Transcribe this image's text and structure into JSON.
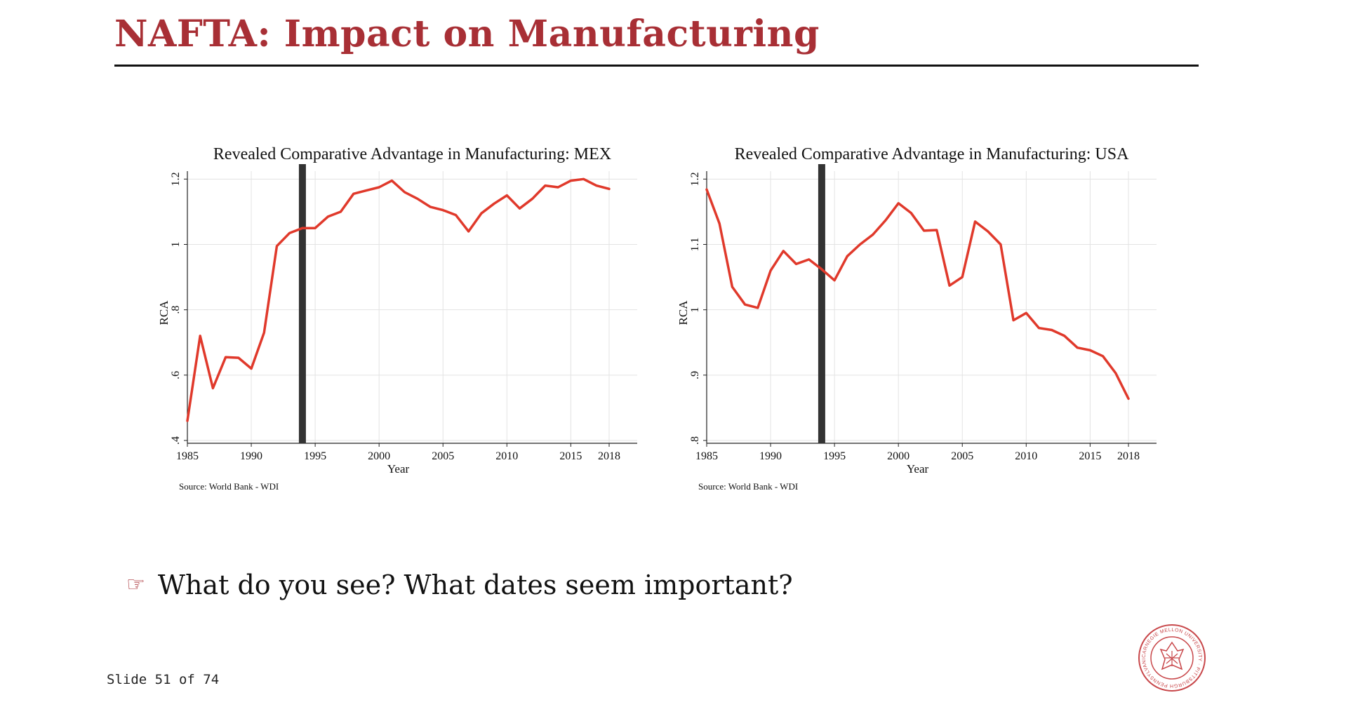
{
  "slide": {
    "title": "NAFTA: Impact on Manufacturing",
    "bullet_icon": "pointing-hand-icon",
    "bullet_text": "What do you see? What dates seem important?",
    "slide_number": "Slide 51 of 74",
    "logo": {
      "icon": "cmu-seal-logo",
      "text": "CARNEGIE MELLON UNIVERSITY · PITTSBURGH PENNSYLVANIA 1900"
    },
    "accent_color": "#a82f35"
  },
  "chart_data": [
    {
      "type": "line",
      "title": "Revealed Comparative Advantage in Manufacturing: MEX",
      "xlabel": "Year",
      "ylabel": "RCA",
      "source": "Source: World Bank - WDI",
      "xlim": [
        1985,
        2018
      ],
      "ylim": [
        0.4,
        1.22
      ],
      "xticks": [
        1985,
        1990,
        1995,
        2000,
        2005,
        2010,
        2015,
        2018
      ],
      "yticks": [
        0.4,
        0.6,
        0.8,
        1.0,
        1.2
      ],
      "ytick_labels": [
        ".4",
        ".6",
        ".8",
        "1",
        "1.2"
      ],
      "grid": true,
      "line_color": "#e0392b",
      "marker_year": 1994,
      "series": [
        {
          "x": [
            1985,
            1986,
            1987,
            1988,
            1989,
            1990,
            1991,
            1992,
            1993,
            1994,
            1995,
            1996,
            1997,
            1998,
            1999,
            2000,
            2001,
            2002,
            2003,
            2004,
            2005,
            2006,
            2007,
            2008,
            2009,
            2010,
            2011,
            2012,
            2013,
            2014,
            2015,
            2016,
            2017,
            2018
          ],
          "values": [
            0.46,
            0.72,
            0.56,
            0.655,
            0.653,
            0.62,
            0.73,
            0.995,
            1.035,
            1.05,
            1.05,
            1.085,
            1.1,
            1.155,
            1.165,
            1.175,
            1.195,
            1.16,
            1.14,
            1.115,
            1.105,
            1.09,
            1.04,
            1.095,
            1.125,
            1.15,
            1.11,
            1.14,
            1.18,
            1.175,
            1.195,
            1.2,
            1.18,
            1.17
          ]
        }
      ]
    },
    {
      "type": "line",
      "title": "Revealed Comparative Advantage in Manufacturing: USA",
      "xlabel": "Year",
      "ylabel": "RCA",
      "source": "Source: World Bank - WDI",
      "xlim": [
        1985,
        2018
      ],
      "ylim": [
        0.8,
        1.21
      ],
      "xticks": [
        1985,
        1990,
        1995,
        2000,
        2005,
        2010,
        2015,
        2018
      ],
      "yticks": [
        0.8,
        0.9,
        1.0,
        1.1,
        1.2
      ],
      "ytick_labels": [
        ".8",
        ".9",
        "1",
        "1.1",
        "1.2"
      ],
      "grid": true,
      "line_color": "#e0392b",
      "marker_year": 1994,
      "series": [
        {
          "x": [
            1985,
            1986,
            1987,
            1988,
            1989,
            1990,
            1991,
            1992,
            1993,
            1994,
            1995,
            1996,
            1997,
            1998,
            1999,
            2000,
            2001,
            2002,
            2003,
            2004,
            2005,
            2006,
            2007,
            2008,
            2009,
            2010,
            2011,
            2012,
            2013,
            2014,
            2015,
            2016,
            2017,
            2018
          ],
          "values": [
            1.184,
            1.132,
            1.035,
            1.008,
            1.003,
            1.06,
            1.09,
            1.07,
            1.077,
            1.062,
            1.045,
            1.082,
            1.1,
            1.115,
            1.137,
            1.163,
            1.148,
            1.121,
            1.122,
            1.037,
            1.05,
            1.135,
            1.12,
            1.1,
            0.984,
            0.995,
            0.972,
            0.969,
            0.96,
            0.942,
            0.938,
            0.929,
            0.903,
            0.864
          ]
        }
      ]
    }
  ]
}
